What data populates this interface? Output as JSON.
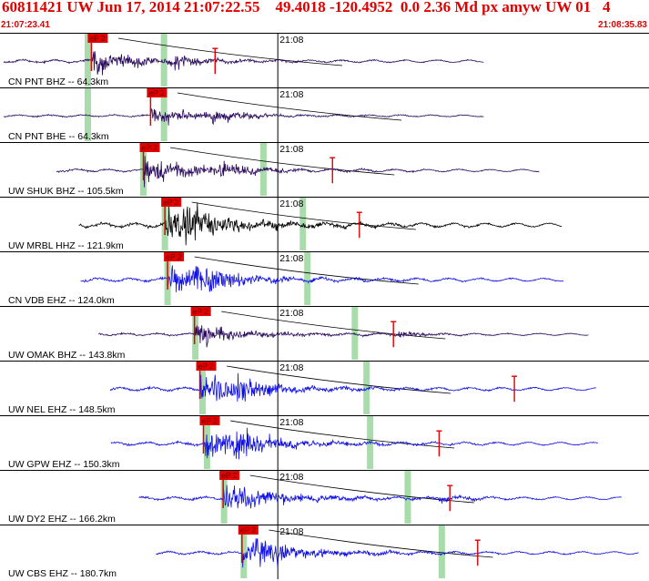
{
  "header": {
    "title": "60811421 UW Jun 17, 2014 21:07:22.55    49.4018 -120.4952  0.0 2.36 Md px amyw UW 01   4",
    "time_start": "21:07:23.41",
    "time_end": "21:08:35.83"
  },
  "chart_data": {
    "type": "line",
    "title": "",
    "xlabel": "",
    "ylabel": "",
    "x_range": [
      "21:07:23.41",
      "21:08:35.83"
    ],
    "minute_mark_label": "21:08",
    "minute_mark_offset_s": 31.0,
    "pick_label": "eP 2",
    "colors": {
      "header": "#e00000",
      "pick": "#e00000",
      "window": "#a8dcaa",
      "wave_blue": "#1010e6",
      "wave_purple": "#2a0a5e",
      "wave_black": "#000000"
    },
    "traces": [
      {
        "label": "CN PNT BHZ -- 64.3km",
        "color": "#2a0a5e",
        "data_start_s": 0.4,
        "data_end_s": 54.0,
        "p_pick_s": 10.2,
        "s_arrival_s": 19.5,
        "p_window_s": 9.8,
        "s_window_s": 18.3,
        "coda_pick_s": 24.0,
        "amp": 0.55,
        "clip": false
      },
      {
        "label": "CN PNT BHE -- 64.3km",
        "color": "#2a0a5e",
        "data_start_s": 0.4,
        "data_end_s": 54.0,
        "p_pick_s": 16.8,
        "s_arrival_s": 23.5,
        "p_window_s": 9.8,
        "s_window_s": 18.3,
        "coda_pick_s": null,
        "amp": 0.4,
        "clip": false
      },
      {
        "label": "UW SHUK BHZ -- 105.5km",
        "color": "#2a0a5e",
        "data_start_s": 6.3,
        "data_end_s": 60.2,
        "p_pick_s": 16.0,
        "s_arrival_s": 24.5,
        "p_window_s": 16.0,
        "s_window_s": 29.4,
        "coda_pick_s": 37.1,
        "amp": 0.55,
        "clip": false
      },
      {
        "label": "UW MRBL HHZ -- 121.9km",
        "color": "#000000",
        "data_start_s": 8.8,
        "data_end_s": 62.7,
        "p_pick_s": 18.4,
        "s_arrival_s": 20.5,
        "p_window_s": 18.4,
        "s_window_s": 33.8,
        "coda_pick_s": 40.1,
        "amp": 0.9,
        "clip": true
      },
      {
        "label": "CN VDB EHZ -- 124.0km",
        "color": "#1010e6",
        "data_start_s": 9.0,
        "data_end_s": 62.9,
        "p_pick_s": 18.7,
        "s_arrival_s": 21.5,
        "p_window_s": 18.7,
        "s_window_s": 34.3,
        "coda_pick_s": null,
        "amp": 0.7,
        "clip": false
      },
      {
        "label": "UW OMAK BHZ -- 143.8km",
        "color": "#2a0a5e",
        "data_start_s": 11.0,
        "data_end_s": 65.7,
        "p_pick_s": 21.7,
        "s_arrival_s": 44.5,
        "p_window_s": 21.8,
        "s_window_s": 39.6,
        "coda_pick_s": 43.9,
        "amp": 0.45,
        "clip": false
      },
      {
        "label": "UW NEL EHZ -- 148.5km",
        "color": "#1010e6",
        "data_start_s": 12.3,
        "data_end_s": 66.5,
        "p_pick_s": 22.3,
        "s_arrival_s": 26.0,
        "p_window_s": 22.6,
        "s_window_s": 40.9,
        "coda_pick_s": 57.4,
        "amp": 0.65,
        "clip": false
      },
      {
        "label": "UW GPW EHZ -- 150.3km",
        "color": "#1010e6",
        "data_start_s": 12.4,
        "data_end_s": 66.7,
        "p_pick_s": 22.7,
        "s_arrival_s": 26.0,
        "p_window_s": 23.1,
        "s_window_s": 41.3,
        "coda_pick_s": 49.0,
        "amp": 0.65,
        "clip": false
      },
      {
        "label": "UW DY2 EHZ -- 166.2km",
        "color": "#1010e6",
        "data_start_s": 15.5,
        "data_end_s": 69.4,
        "p_pick_s": 24.9,
        "s_arrival_s": 49.0,
        "p_window_s": 25.0,
        "s_window_s": 45.5,
        "coda_pick_s": 50.2,
        "amp": 0.6,
        "clip": false
      },
      {
        "label": "UW CBS EHZ -- 180.7km",
        "color": "#1010e6",
        "data_start_s": 17.4,
        "data_end_s": 71.3,
        "p_pick_s": 27.0,
        "s_arrival_s": 29.0,
        "p_window_s": 27.2,
        "s_window_s": 49.3,
        "coda_pick_s": 53.3,
        "amp": 0.6,
        "clip": false
      }
    ]
  }
}
